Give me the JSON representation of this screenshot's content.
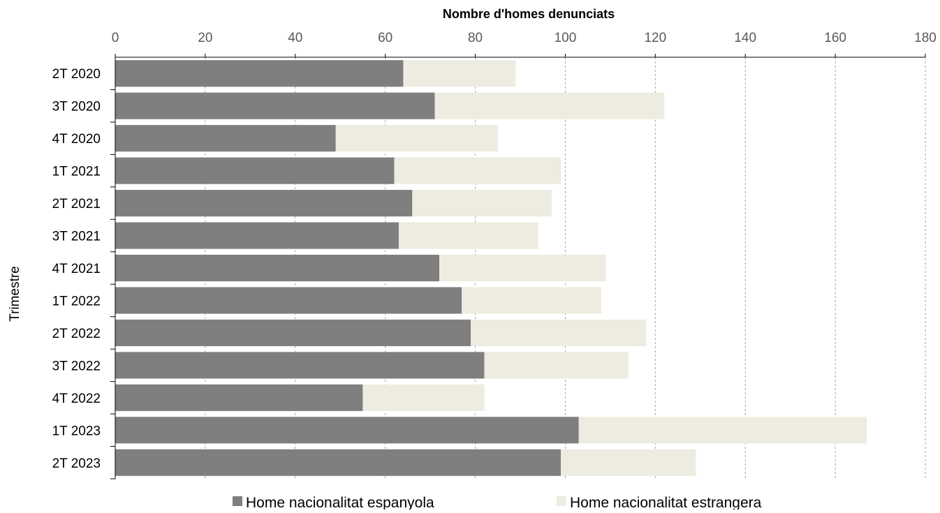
{
  "chart_data": {
    "type": "bar",
    "orientation": "horizontal",
    "stacked": true,
    "title": "",
    "xlabel": "Nombre d'homes denunciats",
    "ylabel": "Trimestre",
    "xlim": [
      0,
      180
    ],
    "x_ticks": [
      0,
      20,
      40,
      60,
      80,
      100,
      120,
      140,
      160,
      180
    ],
    "x_axis_position": "top",
    "grid": "vertical dashed",
    "legend_position": "bottom",
    "categories": [
      "2T 2020",
      "3T 2020",
      "4T 2020",
      "1T 2021",
      "2T 2021",
      "3T 2021",
      "4T 2021",
      "1T 2022",
      "2T 2022",
      "3T 2022",
      "4T 2022",
      "1T 2023",
      "2T 2023"
    ],
    "series": [
      {
        "name": "Home nacionalitat espanyola",
        "color": "#7f7f7f",
        "values": [
          64,
          71,
          49,
          62,
          66,
          63,
          72,
          77,
          79,
          82,
          55,
          103,
          99
        ]
      },
      {
        "name": "Home nacionalitat estrangera",
        "color": "#eeece1",
        "values": [
          25,
          51,
          36,
          37,
          31,
          31,
          37,
          31,
          39,
          32,
          27,
          64,
          30
        ]
      }
    ]
  }
}
